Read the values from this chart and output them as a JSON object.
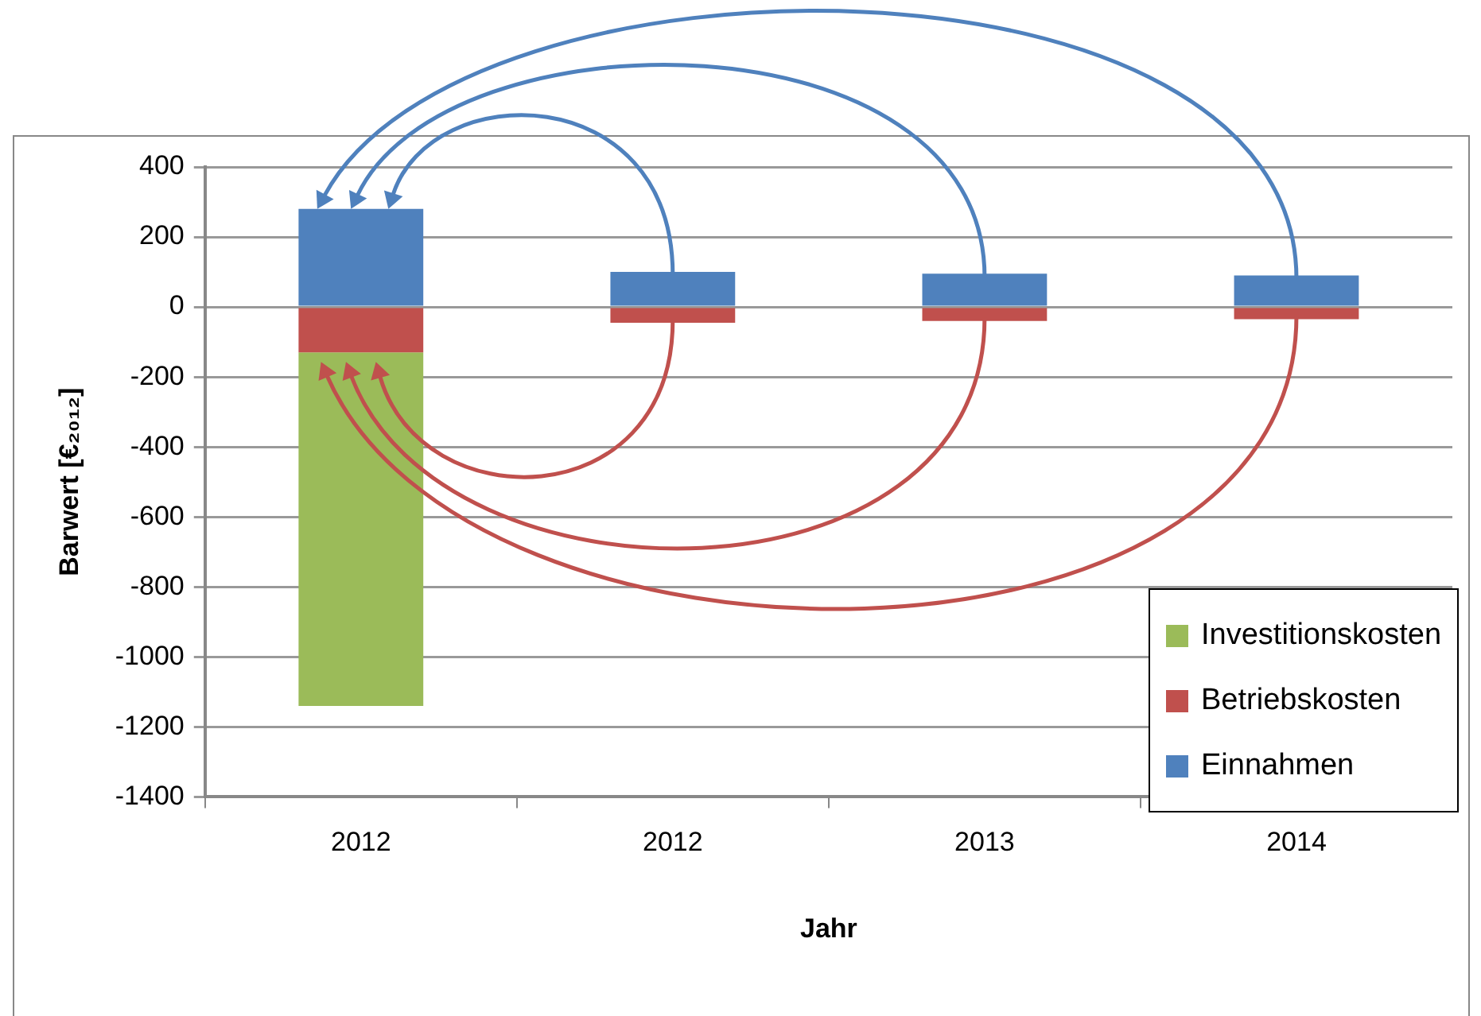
{
  "chart_data": {
    "type": "bar",
    "stacked": true,
    "xlabel": "Jahr",
    "ylabel": "Barwert [€₂₀₁₂]",
    "categories": [
      "2012",
      "2012",
      "2013",
      "2014"
    ],
    "series": [
      {
        "name": "Einnahmen",
        "color": "#4f81bd",
        "values": [
          280,
          100,
          95,
          90
        ]
      },
      {
        "name": "Betriebskosten",
        "color": "#c0504d",
        "values": [
          -130,
          -45,
          -40,
          -35
        ]
      },
      {
        "name": "Investitionskosten",
        "color": "#9bbb59",
        "values": [
          -1010,
          null,
          null,
          null
        ]
      }
    ],
    "ylim": [
      -1400,
      400
    ],
    "yticks": [
      -1400,
      -1200,
      -1000,
      -800,
      -600,
      -400,
      -200,
      0,
      200,
      400
    ],
    "grid": "y",
    "legend": "bottom right"
  }
}
